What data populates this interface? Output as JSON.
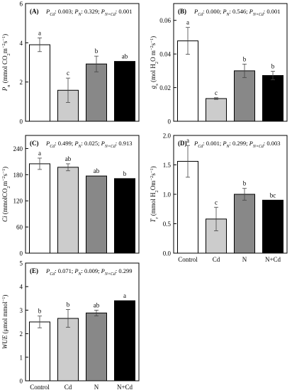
{
  "charts": [
    {
      "id": "A",
      "panel_label": "(A)",
      "stats": {
        "a_label": "P",
        "a_sub": "Cd",
        "a_val": ": 0.003; ",
        "b_label": "P",
        "b_sub": "N",
        "b_val": ": 0.329; ",
        "c_label": "P",
        "c_sub": "N×Cd",
        "c_val": ": 0.001"
      },
      "ylabel": {
        "symbol": "P",
        "symbol_sub": "n",
        "units": " (mmol CO",
        "units_sub": "2",
        "units_rest": "m",
        "sup1": "−2",
        "s": "s",
        "sup2": "−1",
        "close": ")"
      },
      "yticks": [
        "0",
        "2",
        "4",
        "6"
      ],
      "ylim": [
        0,
        6
      ],
      "show_xticks": false
    },
    {
      "id": "B",
      "panel_label": "(B)",
      "stats": {
        "a_label": "P",
        "a_sub": "Cd",
        "a_val": ": 0.000; ",
        "b_label": "P",
        "b_sub": "N",
        "b_val": ": 0.546; ",
        "c_label": "P",
        "c_sub": "N×Cd",
        "c_val": ": 0.001"
      },
      "ylabel": {
        "symbol": "g",
        "symbol_sub": "s",
        "units": " (mol H",
        "units_sub": "2",
        "units_rest": "O m",
        "sup1": "−2",
        "s": "s",
        "sup2": "−1",
        "close": ")"
      },
      "yticks": [
        "0",
        "0.02",
        "0.04",
        "0.06"
      ],
      "ylim": [
        0,
        0.07
      ],
      "show_xticks": false
    },
    {
      "id": "C",
      "panel_label": "(C)",
      "stats": {
        "a_label": "P",
        "a_sub": "Cd",
        "a_val": ": 0.499; ",
        "b_label": "P",
        "b_sub": "N",
        "b_val": ": 0.025; ",
        "c_label": "P",
        "c_sub": "N×Cd",
        "c_val": ": 0.913"
      },
      "ylabel": {
        "symbol": "Ci",
        "symbol_sub": "",
        "units": " (mmolCO",
        "units_sub": "2",
        "units_rest": "m",
        "sup1": "−2",
        "s": "s",
        "sup2": "−1",
        "close": ")"
      },
      "yticks": [
        "0",
        "60",
        "120",
        "180",
        "240"
      ],
      "ylim": [
        0,
        270
      ],
      "show_xticks": false
    },
    {
      "id": "D",
      "panel_label": "(D)",
      "stats": {
        "a_label": "P",
        "a_sub": "Cd",
        "a_val": ": 0.001; ",
        "b_label": "P",
        "b_sub": "N",
        "b_val": ": 0.299; ",
        "c_label": "P",
        "c_sub": "N×Cd",
        "c_val": ": 0.003"
      },
      "ylabel": {
        "symbol": "T",
        "symbol_sub": "r",
        "units": " (mmol H",
        "units_sub": "2",
        "units_rest": "Om",
        "sup1": "−2",
        "s": "s",
        "sup2": "−1",
        "close": ")"
      },
      "yticks": [
        "0.0",
        "0.5",
        "1.0",
        "1.5",
        "2.0"
      ],
      "ylim": [
        0,
        2.0
      ],
      "show_xticks": true
    },
    {
      "id": "E",
      "panel_label": "(E)",
      "stats": {
        "a_label": "P",
        "a_sub": "Cd",
        "a_val": ": 0.071; ",
        "b_label": "P",
        "b_sub": "N",
        "b_val": ": 0.009; ",
        "c_label": "P",
        "c_sub": "N×Cd",
        "c_val": ": 0.299"
      },
      "ylabel": {
        "symbol": "WUE",
        "symbol_sub": "",
        "units": " (μmol mmol",
        "units_sub": "",
        "units_rest": "",
        "sup1": "−1",
        "s": "",
        "sup2": "",
        "close": ")"
      },
      "yticks": [
        "0",
        "1",
        "2",
        "3",
        "4",
        "5"
      ],
      "ylim": [
        0,
        5
      ],
      "show_xticks": true
    }
  ],
  "chart_data": [
    {
      "type": "bar",
      "title": "(A)",
      "ylabel": "Pn (mmol CO2m−2s−1)",
      "categories": [
        "Control",
        "Cd",
        "N",
        "N+Cd"
      ],
      "values": [
        3.9,
        1.58,
        2.92,
        3.05
      ],
      "errors": [
        0.35,
        0.62,
        0.4,
        0.0
      ],
      "letters": [
        "a",
        "c",
        "b",
        "ab"
      ],
      "colors": [
        "#ffffff",
        "#cccccc",
        "#888888",
        "#000000"
      ],
      "ylim": [
        0,
        6
      ]
    },
    {
      "type": "bar",
      "title": "(B)",
      "ylabel": "gs (mol H2O m−2s−1)",
      "categories": [
        "Control",
        "Cd",
        "N",
        "N+Cd"
      ],
      "values": [
        0.0478,
        0.0135,
        0.03,
        0.0272
      ],
      "errors": [
        0.008,
        0.0005,
        0.004,
        0.0025
      ],
      "letters": [
        "a",
        "c",
        "b",
        "b"
      ],
      "colors": [
        "#ffffff",
        "#cccccc",
        "#888888",
        "#000000"
      ],
      "ylim": [
        0,
        0.07
      ]
    },
    {
      "type": "bar",
      "title": "(C)",
      "ylabel": "Ci (mmolCO2m−2s−1)",
      "categories": [
        "Control",
        "Cd",
        "N",
        "N+Cd"
      ],
      "values": [
        205,
        197,
        177,
        171
      ],
      "errors": [
        13,
        8,
        0,
        0
      ],
      "letters": [
        "a",
        "ab",
        "ab",
        "b"
      ],
      "colors": [
        "#ffffff",
        "#cccccc",
        "#888888",
        "#000000"
      ],
      "ylim": [
        0,
        270
      ]
    },
    {
      "type": "bar",
      "title": "(D)",
      "ylabel": "Tr (mmol H2Om−2s−1)",
      "categories": [
        "Control",
        "Cd",
        "N",
        "N+Cd"
      ],
      "values": [
        1.56,
        0.58,
        1.0,
        0.9
      ],
      "errors": [
        0.27,
        0.2,
        0.1,
        0.0
      ],
      "letters": [
        "a",
        "c",
        "b",
        "bc"
      ],
      "colors": [
        "#ffffff",
        "#cccccc",
        "#888888",
        "#000000"
      ],
      "ylim": [
        0,
        2.0
      ]
    },
    {
      "type": "bar",
      "title": "(E)",
      "ylabel": "WUE (μmol mmol−1)",
      "categories": [
        "Control",
        "Cd",
        "N",
        "N+Cd"
      ],
      "values": [
        2.5,
        2.65,
        2.88,
        3.4
      ],
      "errors": [
        0.25,
        0.38,
        0.12,
        0.0
      ],
      "letters": [
        "b",
        "b",
        "ab",
        "a"
      ],
      "colors": [
        "#ffffff",
        "#cccccc",
        "#888888",
        "#000000"
      ],
      "ylim": [
        0,
        5
      ]
    }
  ]
}
